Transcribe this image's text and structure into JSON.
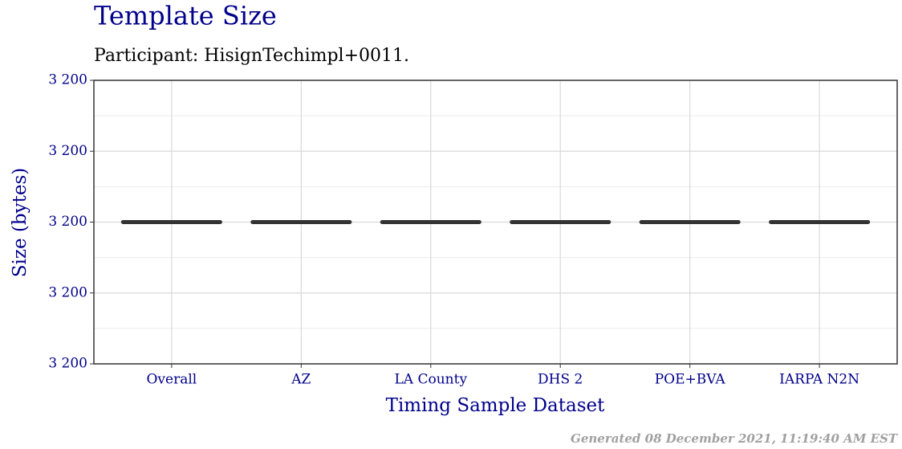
{
  "chart_data": {
    "type": "box",
    "title": "Template Size",
    "subtitle": "Participant: HisignTechimpl+0011.",
    "x_label": "Timing Sample Dataset",
    "y_label": "Size (bytes)",
    "footer": "Generated 08 December 2021, 11:19:40 AM EST",
    "categories": [
      "Overall",
      "AZ",
      "LA County",
      "DHS 2",
      "POE+BVA",
      "IARPA N2N"
    ],
    "values": [
      3200,
      3200,
      3200,
      3200,
      3200,
      3200
    ],
    "color": "#333333",
    "ylim": [
      3199.98,
      3200.02
    ],
    "yticks": [
      {
        "value": 3199.98,
        "label": "3 200"
      },
      {
        "value": 3199.99,
        "label": "3 200"
      },
      {
        "value": 3200,
        "label": "3 200"
      },
      {
        "value": 3200.01,
        "label": "3 200"
      },
      {
        "value": 3200.02,
        "label": "3 200"
      }
    ],
    "grid": true
  }
}
